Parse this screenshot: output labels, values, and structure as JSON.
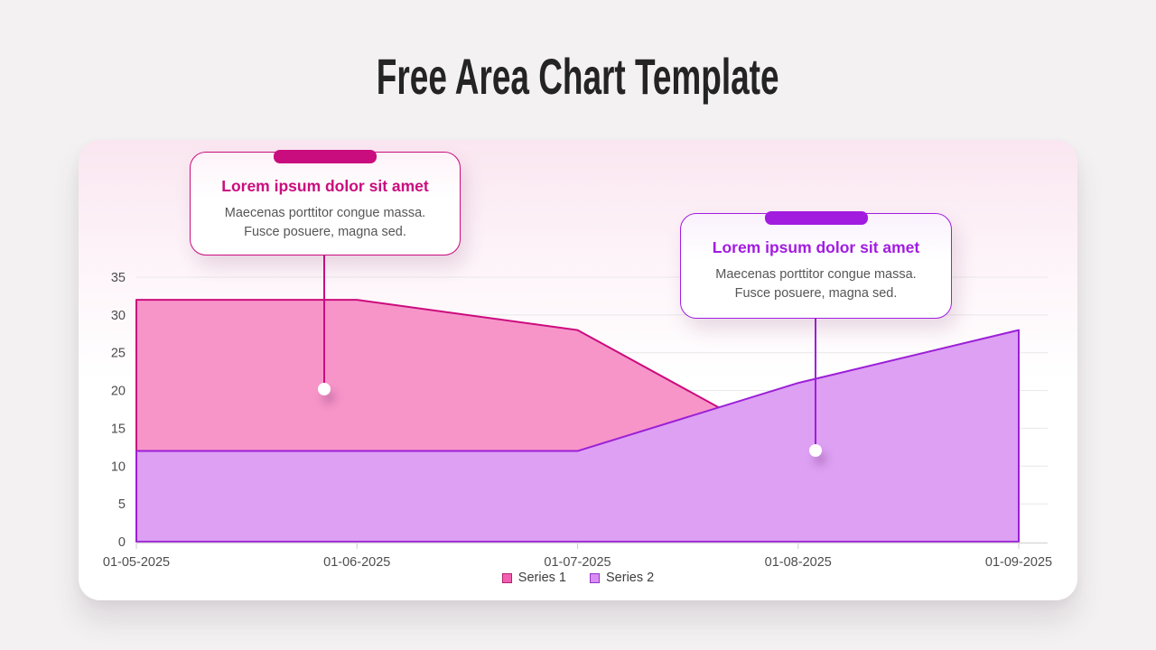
{
  "title": "Free Area Chart Template",
  "theme": {
    "accent1": "#ca0d7e",
    "accent2": "#a21ce0",
    "card_tint": "#fae6f0"
  },
  "chart_data": {
    "type": "area",
    "title": "",
    "xlabel": "",
    "ylabel": "",
    "x": [
      "01-05-2025",
      "01-06-2025",
      "01-07-2025",
      "01-08-2025",
      "01-09-2025"
    ],
    "series": [
      {
        "name": "Series 1",
        "values": [
          32,
          32,
          28,
          12,
          12
        ],
        "fill": "#f795c9",
        "stroke": "#cb0c7d",
        "swatch_fill": "#f25fb0",
        "swatch_border": "#b02372"
      },
      {
        "name": "Series 2",
        "values": [
          12,
          12,
          12,
          21,
          28
        ],
        "fill": "#dda0f3",
        "stroke": "#9c1fd6",
        "swatch_fill": "#d98cf2",
        "swatch_border": "#9333c9"
      }
    ],
    "ylim": [
      0,
      35
    ],
    "y_ticks": [
      0,
      5,
      10,
      15,
      20,
      25,
      30,
      35
    ],
    "grid": true,
    "legend_position": "bottom",
    "note": "overlapping areas, Series 2 drawn in front"
  },
  "callouts": [
    {
      "title": "Lorem ipsum dolor sit amet",
      "body": [
        "Maecenas porttitor congue massa.",
        "Fusce posuere, magna sed."
      ]
    },
    {
      "title": "Lorem ipsum dolor sit amet",
      "body": [
        "Maecenas porttitor congue massa.",
        "Fusce posuere, magna sed."
      ]
    }
  ]
}
